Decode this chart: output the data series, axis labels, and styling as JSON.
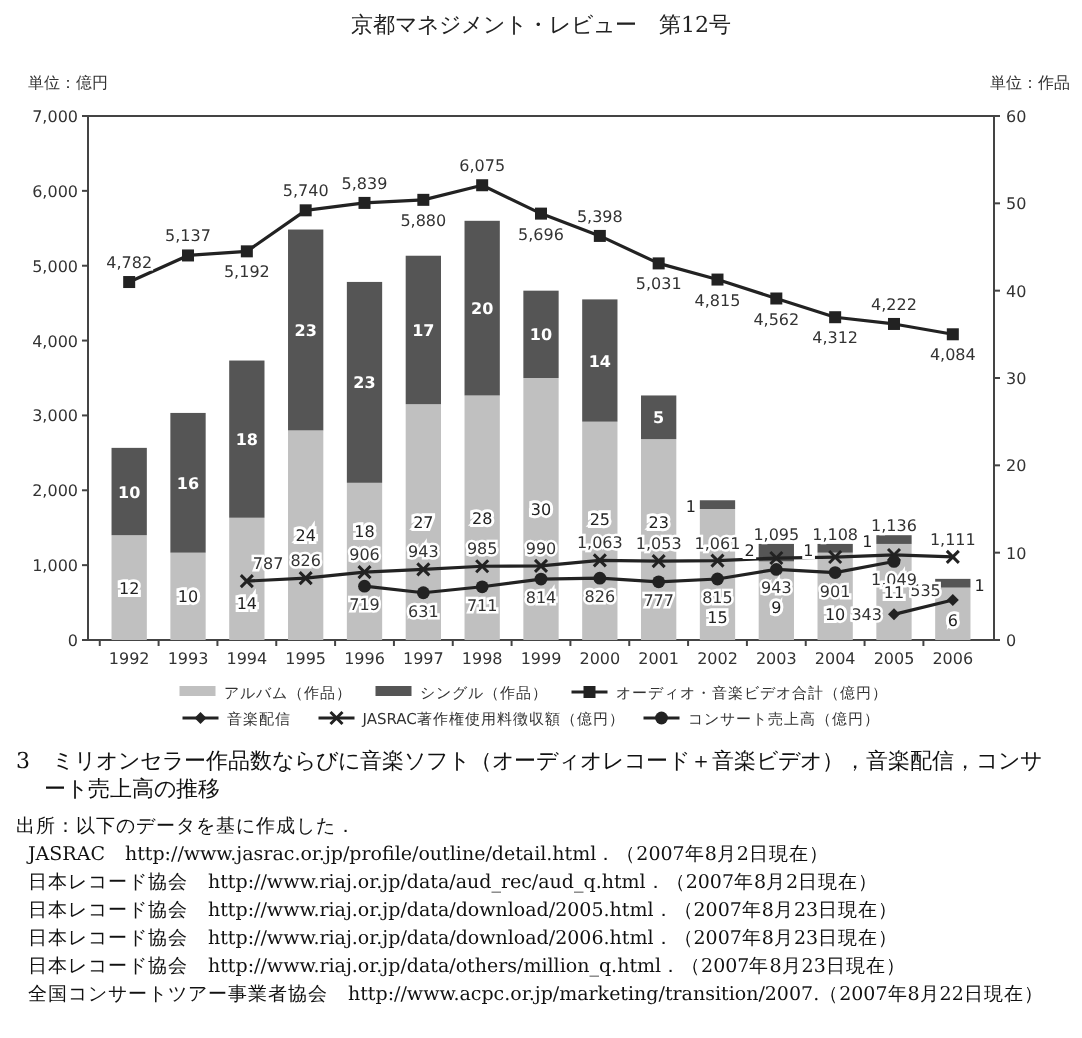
{
  "chart_data": {
    "type": "bar",
    "title": "3　ミリオンセラー作品数ならびに音楽ソフト（オーディオレコード＋音楽ビデオ），音楽配信，コンサート売上高の推移",
    "ylabel": "単位：億円",
    "y2label": "単位：作品",
    "categories": [
      "1992",
      "1993",
      "1994",
      "1995",
      "1996",
      "1997",
      "1998",
      "1999",
      "2000",
      "2001",
      "2002",
      "2003",
      "2004",
      "2005",
      "2006"
    ],
    "stacked": true,
    "legend": "bottom",
    "ylim": [
      0,
      7000
    ],
    "yticks": [
      0,
      {
        "value": 1000,
        "label": "1,000"
      },
      {
        "value": 2000,
        "label": "2,000"
      },
      {
        "value": 3000,
        "label": "3,000"
      },
      {
        "value": 4000,
        "label": "4,000"
      },
      {
        "value": 5000,
        "label": "5,000"
      },
      {
        "value": 6000,
        "label": "6,000"
      },
      {
        "value": 7000,
        "label": "7,000"
      }
    ],
    "y2lim": [
      0,
      60
    ],
    "y2ticks": [
      0,
      10,
      20,
      30,
      40,
      50,
      60
    ],
    "series": [
      {
        "name": "アルバム（作品）",
        "axis": "y2",
        "color": "#c0c0c0",
        "values": [
          12,
          10,
          14,
          24,
          18,
          27,
          28,
          30,
          25,
          23,
          15,
          9,
          10,
          11,
          6
        ],
        "value_labels": [
          "12",
          "10",
          "14",
          "24",
          "18",
          "27",
          "28",
          "30",
          "25",
          "23",
          "15",
          "9",
          "10",
          "11",
          "6"
        ]
      },
      {
        "name": "シングル（作品）",
        "axis": "y2",
        "color": "#555555",
        "values": [
          10,
          16,
          18,
          23,
          23,
          17,
          20,
          10,
          14,
          5,
          1,
          2,
          1,
          1,
          1
        ],
        "value_labels": [
          "10",
          "16",
          "18",
          "23",
          "23",
          "17",
          "20",
          "10",
          "14",
          "5",
          "1",
          "2",
          "1",
          "1",
          "1"
        ]
      },
      {
        "name": "オーディオ・音楽ビデオ合計（億円）",
        "type": "line",
        "marker": "square",
        "color": "#222222",
        "values": [
          4782,
          5137,
          5192,
          5740,
          5839,
          5880,
          6075,
          5696,
          5398,
          5031,
          4815,
          4562,
          4312,
          4222,
          4084
        ],
        "value_labels": [
          "4,782",
          "5,137",
          "5,192",
          "5,740",
          "5,839",
          "5,880",
          "6,075",
          "5,696",
          "5,398",
          "5,031",
          "4,815",
          "4,562",
          "4,312",
          "4,222",
          "4,084"
        ]
      },
      {
        "name": "音楽配信",
        "type": "line",
        "marker": "diamond",
        "color": "#222222",
        "values": [
          null,
          null,
          null,
          null,
          null,
          null,
          null,
          null,
          null,
          null,
          null,
          null,
          null,
          343,
          535
        ],
        "value_labels": [
          null,
          null,
          null,
          null,
          null,
          null,
          null,
          null,
          null,
          null,
          null,
          null,
          null,
          "343",
          "535"
        ]
      },
      {
        "name": "JASRAC著作権使用料徴収額（億円）",
        "type": "line",
        "marker": "cross",
        "color": "#222222",
        "values": [
          null,
          null,
          787,
          826,
          906,
          943,
          985,
          990,
          1063,
          1053,
          1061,
          1095,
          1108,
          1136,
          1111
        ],
        "value_labels": [
          null,
          null,
          "787",
          "826",
          "906",
          "943",
          "985",
          "990",
          "1,063",
          "1,053",
          "1,061",
          "1,095",
          "1,108",
          "1,136",
          "1,111"
        ]
      },
      {
        "name": "コンサート売上高（億円）",
        "type": "line",
        "marker": "circle",
        "color": "#222222",
        "values": [
          null,
          null,
          null,
          null,
          719,
          631,
          711,
          814,
          826,
          777,
          815,
          943,
          901,
          1049,
          null
        ],
        "value_labels": [
          null,
          null,
          null,
          null,
          "719",
          "631",
          "711",
          "814",
          "826",
          "777",
          "815",
          "943",
          "901",
          "1,049",
          null
        ]
      }
    ],
    "annotations": [
      "京都マネジメント・レビュー　第12号",
      "出所：以下のデータを基に作成した．",
      "JASRAC　http://www.jasrac.or.jp/profile/outline/detail.html．（2007年8月2日現在）",
      "日本レコード協会　http://www.riaj.or.jp/data/aud_rec/aud_q.html．（2007年8月2日現在）",
      "日本レコード協会　http://www.riaj.or.jp/data/download/2005.html．（2007年8月23日現在）",
      "日本レコード協会　http://www.riaj.or.jp/data/download/2006.html．（2007年8月23日現在）",
      "日本レコード協会　http://www.riaj.or.jp/data/others/million_q.html．（2007年8月23日現在）",
      "全国コンサートツアー事業者協会　http://www.acpc.or.jp/marketing/transition/2007.（2007年8月22日現在）"
    ]
  }
}
